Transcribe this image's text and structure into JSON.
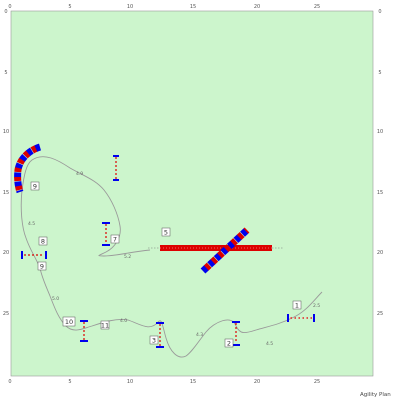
{
  "plan": {
    "footer": "Agility Plan",
    "background_color": "#ccf5cc",
    "border_color": "#999999",
    "path_color": "#9a9a9a",
    "jump_red": "#dd0000",
    "jump_blue": "#0000ee",
    "jump_white": "#ffffff",
    "x_ticks_top": [
      "0",
      "5",
      "10",
      "15",
      "20",
      "25"
    ],
    "x_ticks_bottom": [
      "0",
      "5",
      "10",
      "15",
      "20",
      "25"
    ],
    "y_ticks_left": [
      "0",
      "5",
      "10",
      "15",
      "20",
      "25"
    ],
    "y_ticks_right": [
      "0",
      "5",
      "10",
      "15",
      "20",
      "25"
    ],
    "obstacles": [
      {
        "id": "jump-1",
        "number": "1",
        "type": "jump"
      },
      {
        "id": "jump-2",
        "number": "2",
        "type": "jump"
      },
      {
        "id": "jump-3",
        "number": "3",
        "type": "jump"
      },
      {
        "id": "dogwalk-5",
        "number": "5",
        "type": "dogwalk"
      },
      {
        "id": "jump-7",
        "number": "7",
        "type": "jump"
      },
      {
        "id": "jump-8",
        "number": "8",
        "type": "jump"
      },
      {
        "id": "tunnel-9",
        "number": "9",
        "type": "tunnel"
      },
      {
        "id": "jump-9",
        "number": "9",
        "type": "jump"
      },
      {
        "id": "jump-10",
        "number": "10",
        "type": "jump"
      },
      {
        "id": "jump-11",
        "number": "11",
        "type": "jump"
      },
      {
        "id": "tunnel-extra",
        "number": "",
        "type": "tunnel"
      },
      {
        "id": "jump-upper",
        "number": "",
        "type": "jump"
      }
    ],
    "distances": [
      "2.5",
      "4.5",
      "4.3",
      "4.0",
      "5.0",
      "4.5",
      "4.9",
      "5.2",
      "4.3",
      "5.5",
      "3.9",
      "4.0"
    ]
  }
}
